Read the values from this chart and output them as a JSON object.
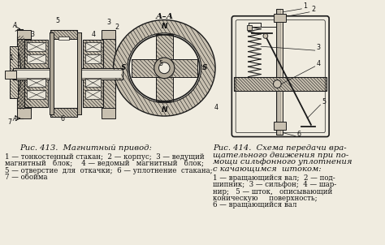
{
  "background_color": "#f0ece0",
  "fig413_title": "Рис. 413.  Магнитный привод:",
  "fig413_caption_line1": "1 — тонкостенный стакан;  2 — корпус;  3 — ведущий",
  "fig413_caption_line2": "магнитный   блок;    4 — ведомый   магнитный   блок;",
  "fig413_caption_line3": "5 — отверстие  для  откачки;  6 — уплотнение  стакана;",
  "fig413_caption_line4": "7 — обойма",
  "fig414_title_line1": "Рис. 414.  Схема передачи вра-",
  "fig414_title_line2": "щательного движения при по-",
  "fig414_title_line3": "мощи сильфонного уплотнения",
  "fig414_title_line4": "с качающимся  штоком:",
  "fig414_caption_line1": "1 — вращающийся вал;  2 — под-",
  "fig414_caption_line2": "шипник;  3 — сильфон;  4 — шар-",
  "fig414_caption_line3": "нир;   5 — шток,   описывающий",
  "fig414_caption_line4": "коническую     поверхность;",
  "fig414_caption_line5": "6 — вращающийся вал",
  "text_color": "#111111",
  "line_color": "#1a1a1a",
  "gray1": "#b0a898",
  "gray2": "#c8c0b0",
  "gray3": "#d8d0c0",
  "white": "#e8e4d8",
  "font_size_caption": 6.2,
  "font_size_title": 7.2,
  "font_size_label": 5.8
}
